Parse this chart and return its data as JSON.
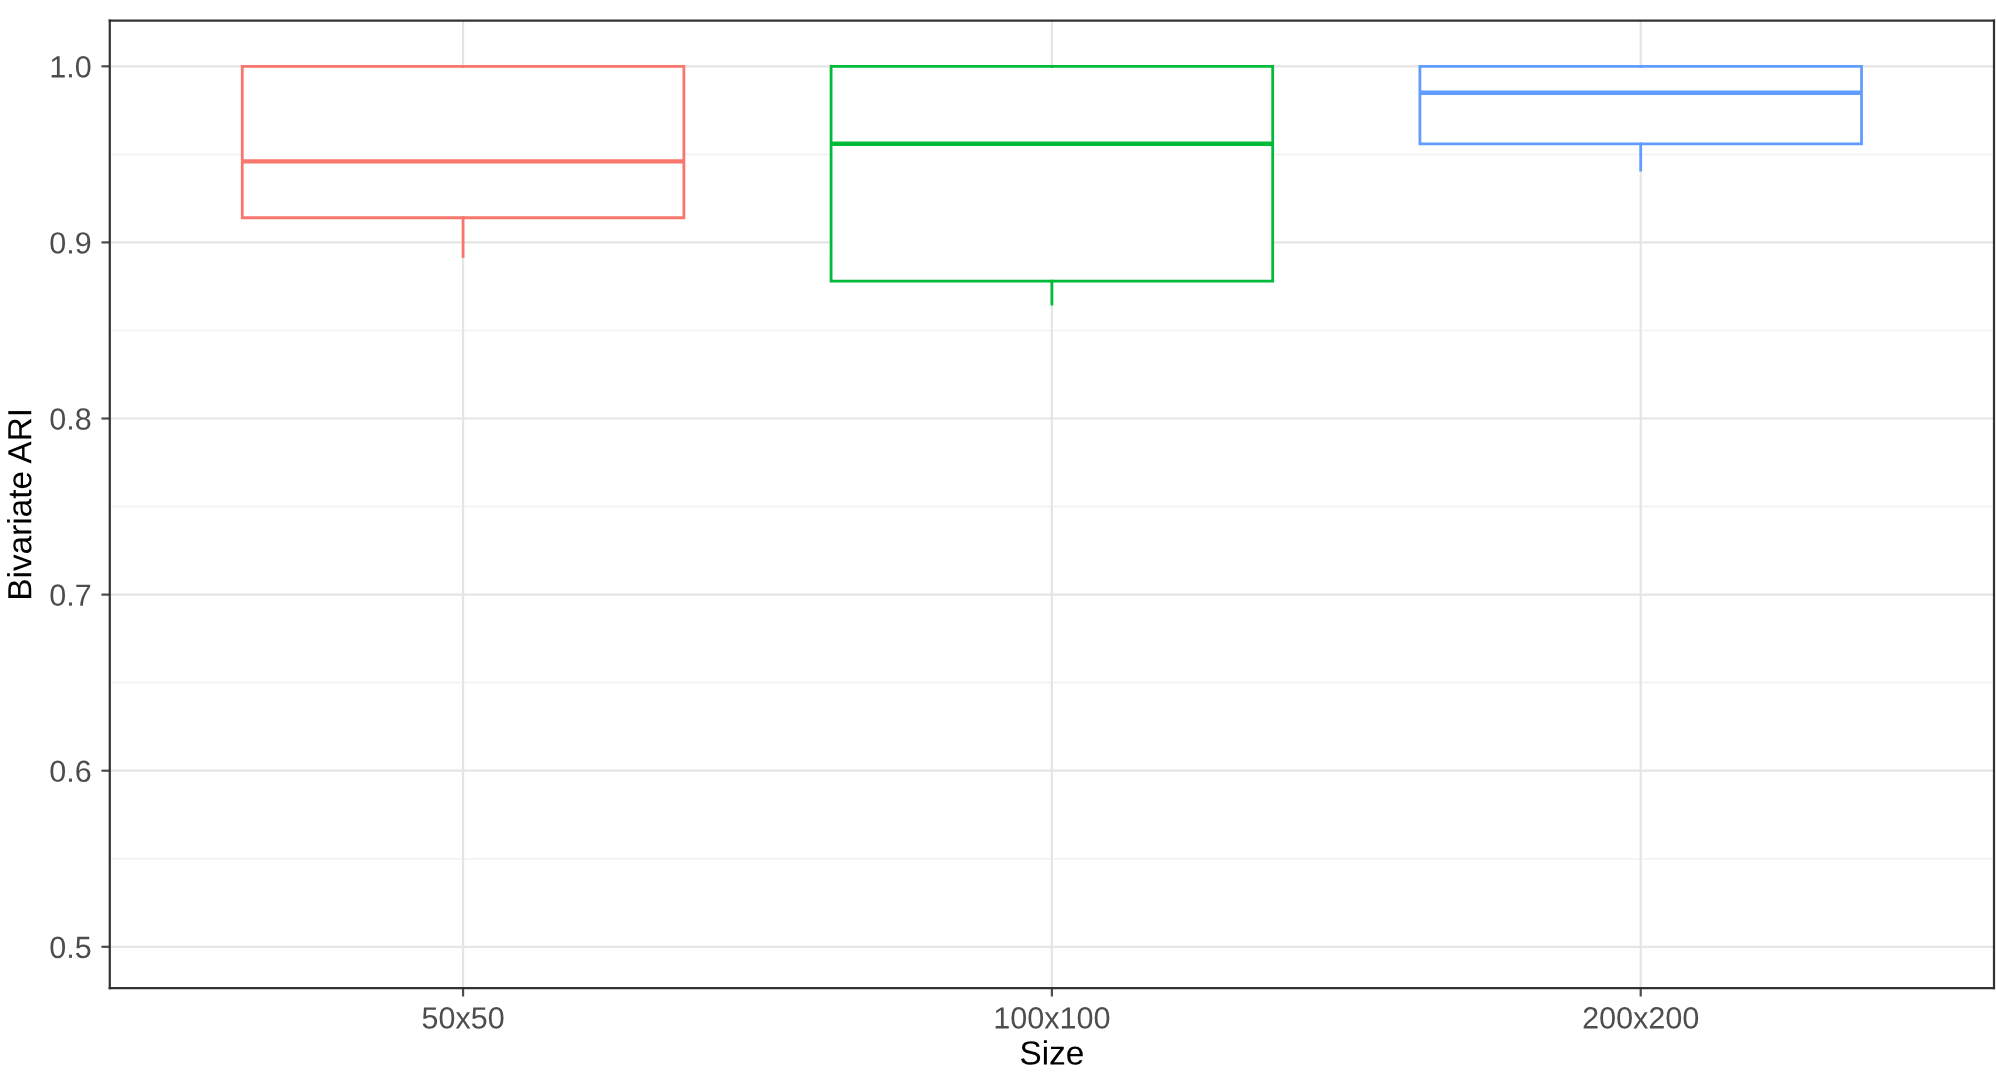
{
  "chart_data": {
    "type": "box",
    "xlabel": "Size",
    "ylabel": "Bivariate ARI",
    "categories": [
      "50x50",
      "100x100",
      "200x200"
    ],
    "colors": [
      "#f8766d",
      "#00ba38",
      "#619cff"
    ],
    "boxes": [
      {
        "low": 0.892,
        "q1": 0.914,
        "median": 0.946,
        "q3": 1.0,
        "high": 1.0
      },
      {
        "low": 0.865,
        "q1": 0.878,
        "median": 0.956,
        "q3": 1.0,
        "high": 1.0
      },
      {
        "low": 0.941,
        "q1": 0.956,
        "median": 0.985,
        "q3": 1.0,
        "high": 1.0
      }
    ],
    "ylim": [
      0.4765,
      1.026
    ],
    "yticks": [
      0.5,
      0.6,
      0.7,
      0.8,
      0.9,
      {
        "value": 1.0,
        "label": "1.0"
      }
    ],
    "grid": true
  }
}
